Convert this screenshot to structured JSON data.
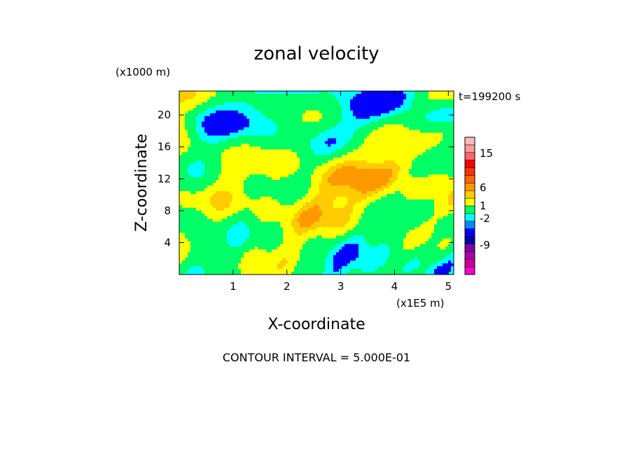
{
  "chart_data": {
    "type": "heatmap",
    "title": "zonal velocity",
    "xlabel": "X-coordinate",
    "ylabel": "Z-coordinate",
    "x_unit": "(x1E5 m)",
    "y_unit": "(x1000 m)",
    "time_label": "t=199200 s",
    "footer": "CONTOUR INTERVAL = 5.000E-01",
    "xlim": [
      0,
      5.1
    ],
    "ylim": [
      0,
      23
    ],
    "x_ticks": [
      1,
      2,
      3,
      4,
      5
    ],
    "y_ticks": [
      4,
      8,
      12,
      16,
      20
    ],
    "colorbar": {
      "levels": [
        {
          "color": "#ff00cc"
        },
        {
          "color": "#cc0099"
        },
        {
          "color": "#aa00aa"
        },
        {
          "color": "#7f00aa"
        },
        {
          "color": "#0000aa"
        },
        {
          "color": "#0000ff"
        },
        {
          "color": "#0088ff"
        },
        {
          "color": "#00ffff"
        },
        {
          "color": "#00ff66"
        },
        {
          "color": "#ffff00"
        },
        {
          "color": "#ffcc00"
        },
        {
          "color": "#ff9900"
        },
        {
          "color": "#ff6600"
        },
        {
          "color": "#ff3300"
        },
        {
          "color": "#ff0000"
        },
        {
          "color": "#ff6666"
        },
        {
          "color": "#ff9999"
        },
        {
          "color": "#ffbbbb"
        }
      ],
      "labels": [
        {
          "text": "15",
          "value": 15
        },
        {
          "text": "6",
          "value": 6
        },
        {
          "text": "1",
          "value": 1
        },
        {
          "text": "-2",
          "value": -2
        },
        {
          "text": "-9",
          "value": -9
        }
      ]
    },
    "field_colors": {
      "strong_negative": "#0000ff",
      "negative": "#00ffff",
      "near_zero": "#00ff66",
      "weak_positive": "#ffff00",
      "positive": "#ffcc00",
      "strong_positive": "#ff9900"
    }
  }
}
